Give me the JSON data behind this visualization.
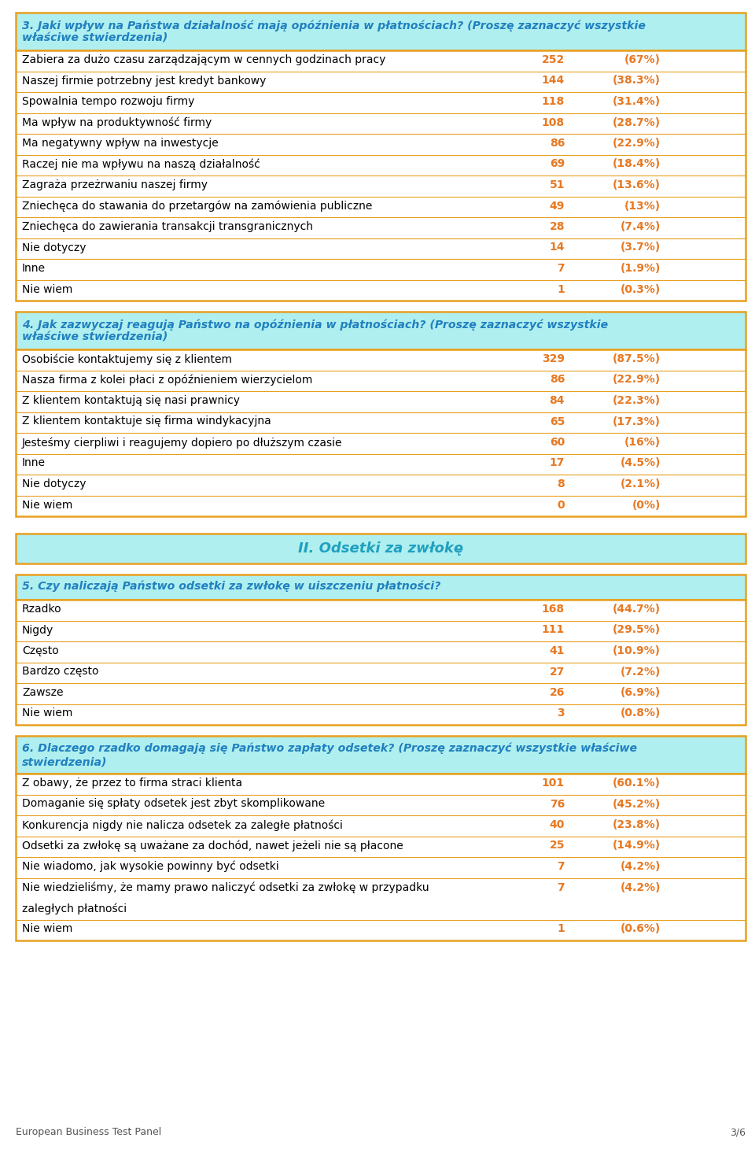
{
  "bg_color": "#ffffff",
  "border_color_orange": "#E8A020",
  "header_bg_color": "#B0EFEF",
  "section_title_color": "#20A0C0",
  "header_text_color": "#2080C0",
  "data_num_color": "#E87820",
  "footer_text": "European Business Test Panel",
  "footer_page": "3/6",
  "q3_title_line1": "3. Jaki wpływ na Państwa działalność mają opóźnienia w płatnościach? (Proszę zaznaczyć wszystkie",
  "q3_title_line2": "właściwe stwierdzenia)",
  "q3_rows": [
    [
      "Zabiera za dużo czasu zarządzającym w cennych godzinach pracy",
      "252",
      "(67%)"
    ],
    [
      "Naszej firmie potrzebny jest kredyt bankowy",
      "144",
      "(38.3%)"
    ],
    [
      "Spowalnia tempo rozwoju firmy",
      "118",
      "(31.4%)"
    ],
    [
      "Ma wpływ na produktywność firmy",
      "108",
      "(28.7%)"
    ],
    [
      "Ma negatywny wpływ na inwestycje",
      "86",
      "(22.9%)"
    ],
    [
      "Raczej nie ma wpływu na naszą działalność",
      "69",
      "(18.4%)"
    ],
    [
      "Zagraża przeżrwaniu naszej firmy",
      "51",
      "(13.6%)"
    ],
    [
      "Zniechęca do stawania do przetargów na zamówienia publiczne",
      "49",
      "(13%)"
    ],
    [
      "Zniechęca do zawierania transakcji transgranicznych",
      "28",
      "(7.4%)"
    ],
    [
      "Nie dotyczy",
      "14",
      "(3.7%)"
    ],
    [
      "Inne",
      "7",
      "(1.9%)"
    ],
    [
      "Nie wiem",
      "1",
      "(0.3%)"
    ]
  ],
  "q4_title_line1": "4. Jak zazwyczaj reagują Państwo na opóźnienia w płatnościach? (Proszę zaznaczyć wszystkie",
  "q4_title_line2": "właściwe stwierdzenia)",
  "q4_rows": [
    [
      "Osobiście kontaktujemy się z klientem",
      "329",
      "(87.5%)"
    ],
    [
      "Nasza firma z kolei płaci z opóźnieniem wierzycielom",
      "86",
      "(22.9%)"
    ],
    [
      "Z klientem kontaktują się nasi prawnicy",
      "84",
      "(22.3%)"
    ],
    [
      "Z klientem kontaktuje się firma windykacyjna",
      "65",
      "(17.3%)"
    ],
    [
      "Jesteśmy cierpliwi i reagujemy dopiero po dłuższym czasie",
      "60",
      "(16%)"
    ],
    [
      "Inne",
      "17",
      "(4.5%)"
    ],
    [
      "Nie dotyczy",
      "8",
      "(2.1%)"
    ],
    [
      "Nie wiem",
      "0",
      "(0%)"
    ]
  ],
  "section2_title": "II. Odsetki za zwłokę",
  "q5_title": "5. Czy naliczają Państwo odsetki za zwłokę w uiszczeniu płatności?",
  "q5_rows": [
    [
      "Rzadko",
      "168",
      "(44.7%)"
    ],
    [
      "Nigdy",
      "111",
      "(29.5%)"
    ],
    [
      "Często",
      "41",
      "(10.9%)"
    ],
    [
      "Bardzo często",
      "27",
      "(7.2%)"
    ],
    [
      "Zawsze",
      "26",
      "(6.9%)"
    ],
    [
      "Nie wiem",
      "3",
      "(0.8%)"
    ]
  ],
  "q6_title_line1": "6. Dlaczego rzadko domagają się Państwo zapłaty odsetek? (Proszę zaznaczyć wszystkie właściwe",
  "q6_title_line2": "stwierdzenia)",
  "q6_rows": [
    [
      "Z obawy, że przez to firma straci klienta",
      "101",
      "(60.1%)"
    ],
    [
      "Domaganie się spłaty odsetek jest zbyt skomplikowane",
      "76",
      "(45.2%)"
    ],
    [
      "Konkurencja nigdy nie nalicza odsetek za zaległe płatności",
      "40",
      "(23.8%)"
    ],
    [
      "Odsetki za zwłokę są uważane za dochód, nawet jeżeli nie są płacone",
      "25",
      "(14.9%)"
    ],
    [
      "Nie wiadomo, jak wysokie powinny być odsetki",
      "7",
      "(4.2%)"
    ],
    [
      "Nie wiedzieliśmy, że mamy prawo naliczyć odsetki za zwłokę w przypadku",
      "7",
      "(4.2%)",
      "zaległych płatności"
    ],
    [
      "Nie wiem",
      "1",
      "(0.6%)"
    ]
  ]
}
